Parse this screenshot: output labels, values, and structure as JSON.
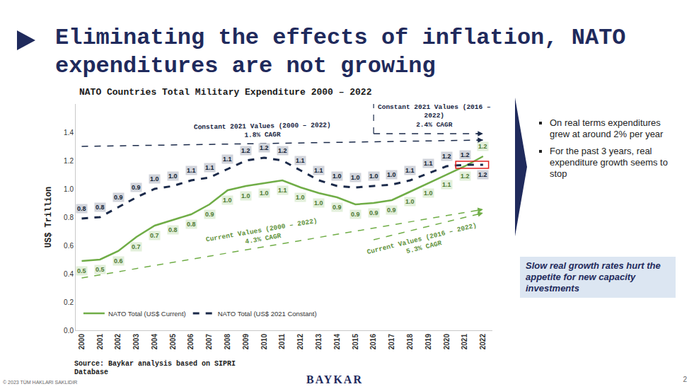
{
  "slide": {
    "title": "Eliminating the effects of inflation, NATO expenditures are not growing",
    "bullets": [
      "On real terms expenditures grew at around 2% per year",
      "For the past 3 years, real expenditure growth seems to stop"
    ],
    "callout": "Slow real growth rates hurt the appetite for new capacity investments",
    "source": "Source: Baykar analysis based on SIPRI Database",
    "copyright": "© 2023 TÜM HAKLARI SAKLIDIR",
    "logo": "BAYKAR",
    "page": "2"
  },
  "chart_data": {
    "type": "line",
    "title": "NATO Countries Total Military Expenditure 2000 – 2022",
    "y_label": "US$ Trillion",
    "categories": [
      "2000",
      "2001",
      "2002",
      "2003",
      "2004",
      "2005",
      "2006",
      "2007",
      "2008",
      "2009",
      "2010",
      "2011",
      "2012",
      "2013",
      "2014",
      "2015",
      "2016",
      "2017",
      "2018",
      "2019",
      "2020",
      "2021",
      "2022"
    ],
    "series": [
      {
        "name": "NATO Total (US$ Current)",
        "color": "#70ad47",
        "line_style": "solid",
        "values": [
          0.49,
          0.5,
          0.56,
          0.66,
          0.74,
          0.78,
          0.82,
          0.89,
          0.99,
          1.02,
          1.04,
          1.06,
          1.01,
          0.97,
          0.94,
          0.89,
          0.9,
          0.92,
          0.98,
          1.04,
          1.1,
          1.16,
          1.23
        ],
        "value_labels": [
          "0.5",
          "0.5",
          "0.6",
          "0.7",
          "0.7",
          "0.8",
          "0.8",
          "0.9",
          "1.0",
          "1.0",
          "1.0",
          "1.1",
          "1.0",
          "1.0",
          "0.9",
          "0.9",
          "0.9",
          "0.9",
          "1.0",
          "1.0",
          "1.1",
          "1.2",
          "1.2"
        ]
      },
      {
        "name": "NATO Total (US$ 2021 Constant)",
        "color": "#1b2a4a",
        "line_style": "dashed",
        "values": [
          0.79,
          0.8,
          0.87,
          0.94,
          1.0,
          1.02,
          1.06,
          1.08,
          1.14,
          1.2,
          1.22,
          1.2,
          1.13,
          1.06,
          1.02,
          1.01,
          1.02,
          1.03,
          1.06,
          1.11,
          1.16,
          1.17,
          1.17
        ],
        "value_labels": [
          "0.8",
          "0.8",
          "0.9",
          "0.9",
          "1.0",
          "1.0",
          "1.1",
          "1.1",
          "1.1",
          "1.2",
          "1.2",
          "1.2",
          "1.1",
          "1.1",
          "1.0",
          "1.0",
          "1.0",
          "1.0",
          "1.1",
          "1.1",
          "1.2",
          "1.2",
          "1.2"
        ]
      }
    ],
    "ylim": [
      0,
      1.6
    ],
    "yticks": [
      {
        "value": 0,
        "label": "0.0"
      },
      0.2,
      0.4,
      0.6,
      0.8,
      {
        "value": 1,
        "label": "1.0"
      },
      1.2,
      1.4
    ],
    "grid": false,
    "legend": "bottom left",
    "data_labels": true,
    "trend_lines": [
      {
        "text": [
          "Constant 2021 Values (2000 – 2022)",
          "1.8% CAGR"
        ],
        "x": [
          "2000",
          "2022"
        ],
        "y": [
          1.3,
          1.345
        ],
        "color": "#1b2a4a",
        "line_style": "dashed",
        "label_position": "above"
      },
      {
        "text": [
          "Constant 2021 Values (2016 – 2022)",
          "2.4% CAGR"
        ],
        "x": [
          "2016",
          "2022"
        ],
        "y": [
          1.39,
          1.39
        ],
        "color": "#1b2a4a",
        "line_style": "dashed",
        "label_position": "top"
      },
      {
        "text": [
          "Current Values (2000 – 2022)",
          "4.3% CAGR"
        ],
        "x": [
          "2000",
          "2022"
        ],
        "y": [
          0.37,
          0.855
        ],
        "color": "#70ad47",
        "line_style": "dashed",
        "label_position": "above"
      },
      {
        "text": [
          "Current Values (2016 – 2022)",
          "5.3% CAGR"
        ],
        "x": [
          "2016",
          "2022"
        ],
        "y": [
          0.64,
          0.83
        ],
        "color": "#70ad47",
        "line_style": "dashed",
        "label_position": "below"
      }
    ],
    "highlight": {
      "categories": [
        "2021",
        "2022"
      ],
      "series": "NATO Total (US$ 2021 Constant)",
      "color": "#e02020"
    }
  }
}
